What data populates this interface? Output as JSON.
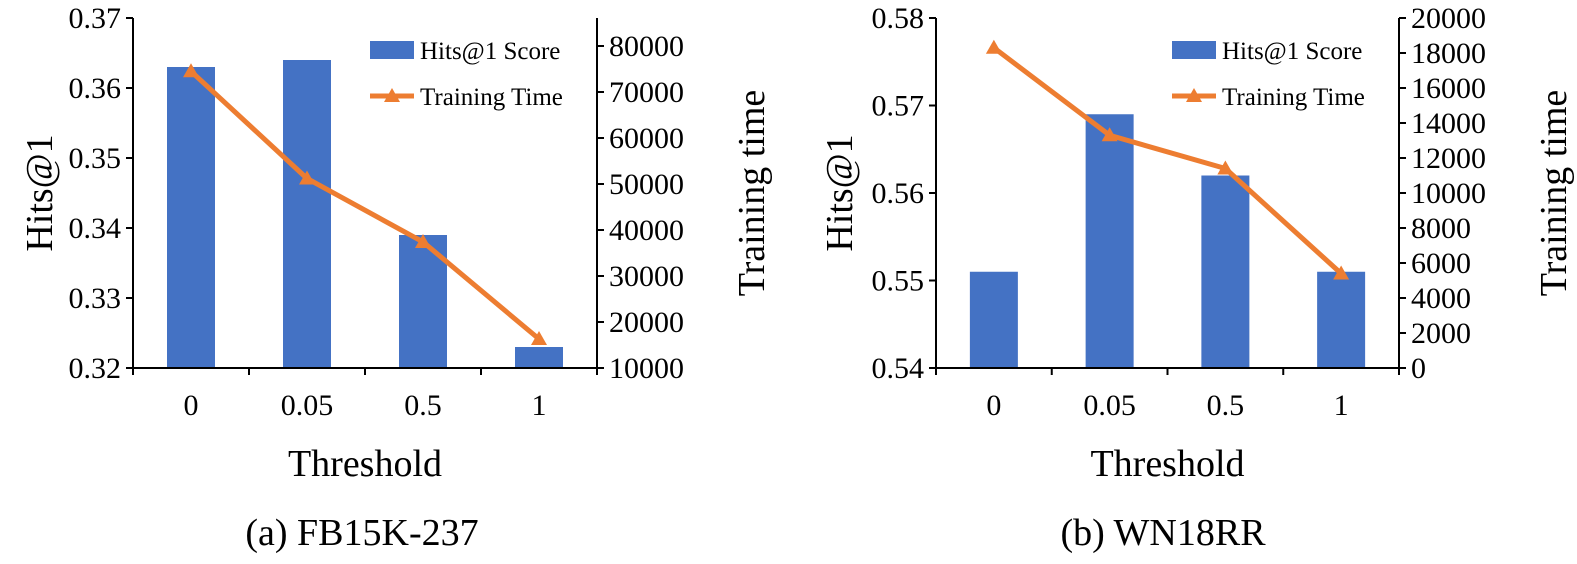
{
  "colors": {
    "bar": "#4472C4",
    "line": "#ED7D31",
    "axis": "#000000"
  },
  "chart_data": [
    {
      "type": "bar+line",
      "caption": "(a) FB15K-237",
      "xlabel": "Threshold",
      "ylabel": "Hits@1",
      "y2label": "Training time",
      "categories": [
        "0",
        "0.05",
        "0.5",
        "1"
      ],
      "ylim": [
        0.32,
        0.37
      ],
      "yticks": [
        "0.32",
        "0.33",
        "0.34",
        "0.35",
        "0.36",
        "0.37"
      ],
      "y2lim": [
        10000,
        85000
      ],
      "y2ticks": [
        "10000",
        "20000",
        "30000",
        "40000",
        "50000",
        "60000",
        "70000",
        "80000"
      ],
      "series": [
        {
          "name": "Hits@1 Score",
          "kind": "bar",
          "axis": "left",
          "values": [
            0.363,
            0.364,
            0.339,
            0.323
          ]
        },
        {
          "name": "Training Time",
          "kind": "line",
          "axis": "right",
          "marker": "triangle",
          "values": [
            74500,
            51200,
            37400,
            16300
          ]
        }
      ],
      "legend_position": "top-right",
      "grid": false
    },
    {
      "type": "bar+line",
      "caption": "(b) WN18RR",
      "xlabel": "Threshold",
      "ylabel": "Hits@1",
      "y2label": "Training time",
      "categories": [
        "0",
        "0.05",
        "0.5",
        "1"
      ],
      "ylim": [
        0.54,
        0.58
      ],
      "yticks": [
        "0.54",
        "0.55",
        "0.56",
        "0.57",
        "0.58"
      ],
      "y2lim": [
        0,
        20000
      ],
      "y2ticks": [
        "0",
        "2000",
        "4000",
        "6000",
        "8000",
        "10000",
        "12000",
        "14000",
        "16000",
        "18000",
        "20000"
      ],
      "series": [
        {
          "name": "Hits@1 Score",
          "kind": "bar",
          "axis": "left",
          "values": [
            0.551,
            0.569,
            0.562,
            0.551
          ]
        },
        {
          "name": "Training Time",
          "kind": "line",
          "axis": "right",
          "marker": "triangle",
          "values": [
            18300,
            13300,
            11400,
            5400
          ]
        }
      ],
      "legend_position": "top-right",
      "grid": false
    }
  ]
}
